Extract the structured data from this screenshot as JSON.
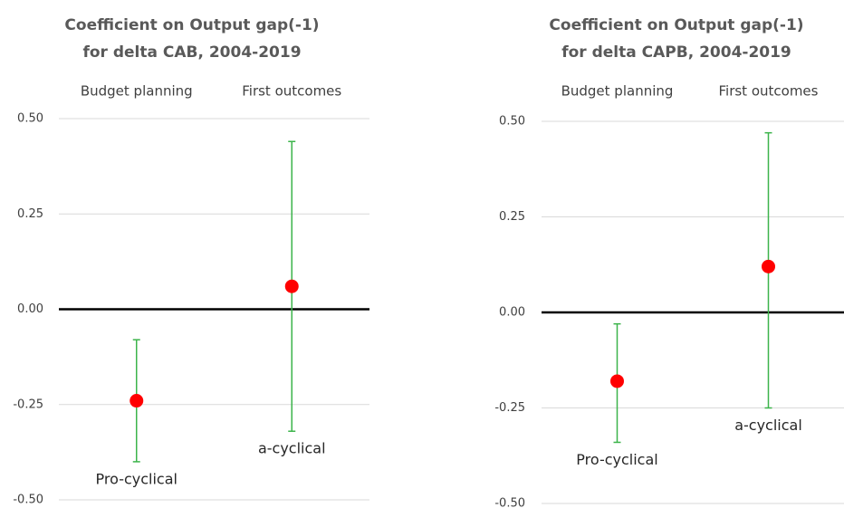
{
  "chart_data": [
    {
      "type": "errorbar",
      "title": [
        "Coefficient on Output gap(-1)",
        "for delta CAB, 2004-2019"
      ],
      "categories": [
        "Budget planning",
        "First outcomes"
      ],
      "values": [
        -0.24,
        0.06
      ],
      "lower": [
        -0.4,
        -0.32
      ],
      "upper": [
        -0.08,
        0.44
      ],
      "annotations": [
        "Pro-cyclical",
        "a-cyclical"
      ],
      "color": "#ff0000",
      "error_color": "#3cb44b",
      "ylim": [
        -0.5,
        0.5
      ],
      "yticks": [
        {
          "value": -0.5,
          "label": "-0.50"
        },
        {
          "value": -0.25,
          "label": "-0.25"
        },
        {
          "value": 0,
          "label": "0.00"
        },
        {
          "value": 0.25,
          "label": "0.25"
        },
        {
          "value": 0.5,
          "label": "0.50"
        }
      ],
      "grid": true
    },
    {
      "type": "errorbar",
      "title": [
        "Coefficient on Output gap(-1)",
        "for delta CAPB, 2004-2019"
      ],
      "categories": [
        "Budget planning",
        "First outcomes"
      ],
      "values": [
        -0.18,
        0.12
      ],
      "lower": [
        -0.34,
        -0.25
      ],
      "upper": [
        -0.03,
        0.47
      ],
      "annotations": [
        "Pro-cyclical",
        "a-cyclical"
      ],
      "color": "#ff0000",
      "error_color": "#3cb44b",
      "ylim": [
        -0.5,
        0.5
      ],
      "yticks": [
        {
          "value": -0.5,
          "label": "-0.50"
        },
        {
          "value": -0.25,
          "label": "-0.25"
        },
        {
          "value": 0,
          "label": "0.00"
        },
        {
          "value": 0.25,
          "label": "0.25"
        },
        {
          "value": 0.5,
          "label": "0.50"
        }
      ],
      "grid": true
    }
  ]
}
